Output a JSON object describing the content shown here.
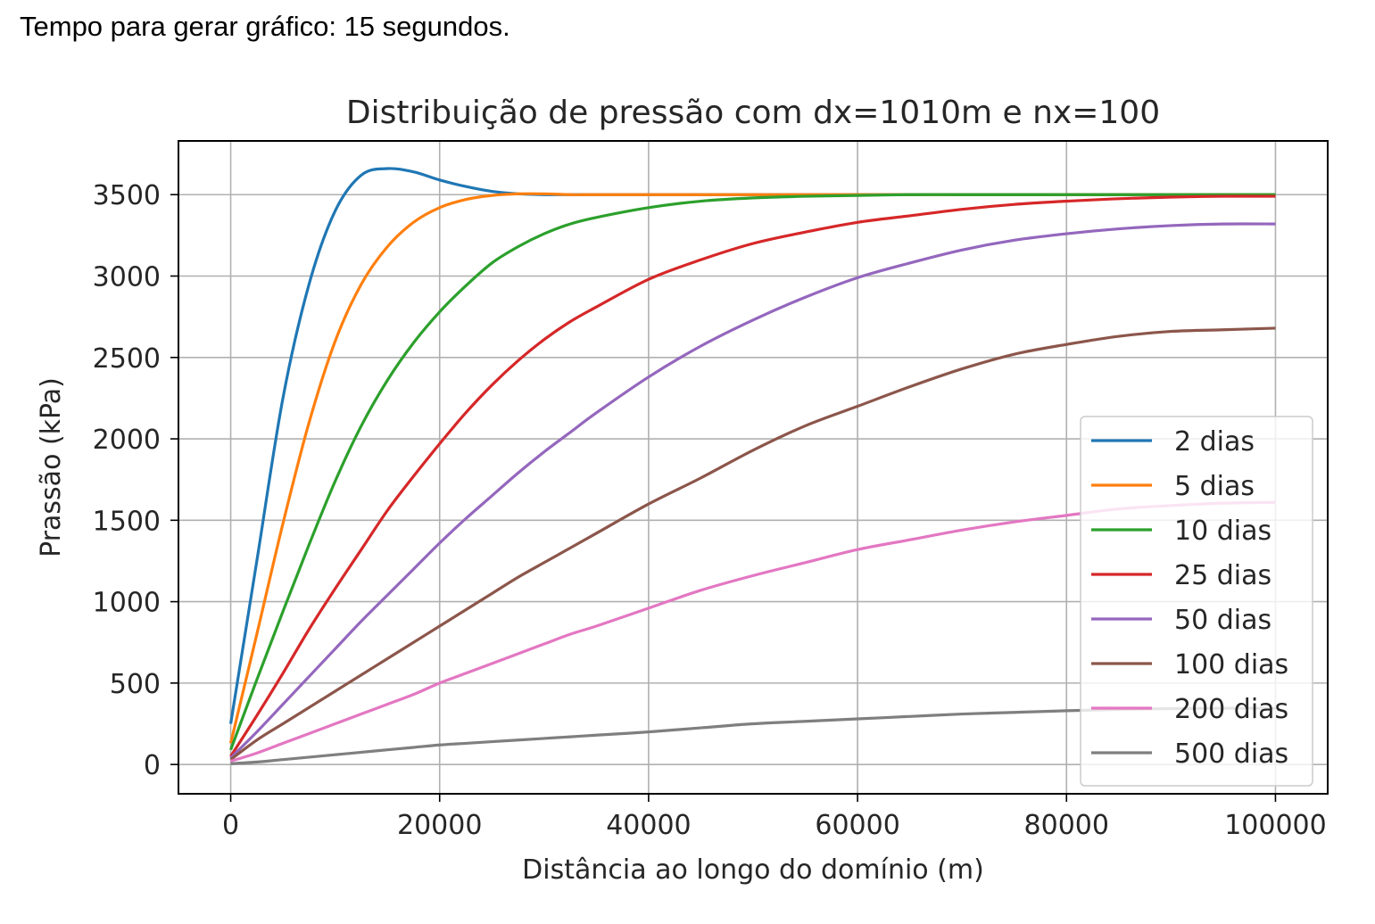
{
  "caption": "Tempo para gerar gráfico: 15 segundos.",
  "chart_data": {
    "type": "line",
    "title": "Distribuição de pressão com dx=1010m e nx=100",
    "xlabel": "Distância ao longo do domínio (m)",
    "ylabel": "Prassão (kPa)",
    "xlim": [
      -5000,
      105000
    ],
    "ylim": [
      -180,
      3830
    ],
    "x_ticks": [
      0,
      20000,
      40000,
      60000,
      80000,
      100000
    ],
    "x_tick_labels": [
      "0",
      "20000",
      "40000",
      "60000",
      "80000",
      "100000"
    ],
    "y_ticks": [
      0,
      500,
      1000,
      1500,
      2000,
      2500,
      3000,
      3500
    ],
    "y_tick_labels": [
      "0",
      "500",
      "1000",
      "1500",
      "2000",
      "2500",
      "3000",
      "3500"
    ],
    "grid": true,
    "legend_position": "lower right",
    "x": [
      0,
      2500,
      5000,
      7500,
      10000,
      12500,
      15000,
      17500,
      20000,
      22500,
      25000,
      27500,
      30000,
      32500,
      35000,
      40000,
      45000,
      50000,
      55000,
      60000,
      65000,
      70000,
      75000,
      80000,
      85000,
      90000,
      95000,
      100000
    ],
    "series": [
      {
        "name": "2 dias",
        "color": "#1f77b4",
        "values": [
          250,
          1250,
          2250,
          2950,
          3400,
          3620,
          3660,
          3640,
          3590,
          3550,
          3520,
          3505,
          3500,
          3500,
          3500,
          3500,
          3500,
          3500,
          3500,
          3500,
          3500,
          3500,
          3500,
          3500,
          3500,
          3500,
          3500,
          3500
        ]
      },
      {
        "name": "5 dias",
        "color": "#ff7f0e",
        "values": [
          130,
          800,
          1480,
          2100,
          2600,
          2950,
          3180,
          3330,
          3420,
          3470,
          3495,
          3505,
          3505,
          3500,
          3500,
          3500,
          3500,
          3500,
          3500,
          3500,
          3500,
          3500,
          3500,
          3500,
          3500,
          3500,
          3500,
          3500
        ]
      },
      {
        "name": "10 dias",
        "color": "#2ca02c",
        "values": [
          90,
          520,
          940,
          1350,
          1740,
          2080,
          2360,
          2590,
          2780,
          2940,
          3080,
          3180,
          3260,
          3320,
          3360,
          3420,
          3460,
          3480,
          3490,
          3495,
          3500,
          3500,
          3500,
          3500,
          3500,
          3500,
          3500,
          3500
        ]
      },
      {
        "name": "25 dias",
        "color": "#d62728",
        "values": [
          50,
          300,
          560,
          830,
          1080,
          1320,
          1560,
          1770,
          1970,
          2160,
          2330,
          2480,
          2610,
          2720,
          2810,
          2980,
          3100,
          3200,
          3270,
          3330,
          3370,
          3410,
          3440,
          3460,
          3475,
          3485,
          3490,
          3490
        ]
      },
      {
        "name": "50 dias",
        "color": "#9467bd",
        "values": [
          40,
          200,
          370,
          540,
          710,
          880,
          1040,
          1200,
          1360,
          1510,
          1650,
          1790,
          1920,
          2040,
          2160,
          2380,
          2570,
          2730,
          2870,
          2990,
          3080,
          3160,
          3220,
          3260,
          3290,
          3310,
          3320,
          3320
        ]
      },
      {
        "name": "100 dias",
        "color": "#8c564b",
        "values": [
          30,
          150,
          250,
          350,
          450,
          550,
          650,
          750,
          850,
          950,
          1050,
          1150,
          1240,
          1330,
          1420,
          1600,
          1760,
          1930,
          2080,
          2200,
          2320,
          2430,
          2520,
          2580,
          2630,
          2660,
          2670,
          2680
        ]
      },
      {
        "name": "200 dias",
        "color": "#e377c2",
        "values": [
          20,
          70,
          130,
          190,
          250,
          310,
          370,
          430,
          500,
          560,
          620,
          680,
          740,
          800,
          850,
          960,
          1070,
          1160,
          1240,
          1320,
          1380,
          1440,
          1490,
          1530,
          1570,
          1590,
          1605,
          1610
        ]
      },
      {
        "name": "500 dias",
        "color": "#7f7f7f",
        "values": [
          5,
          15,
          30,
          45,
          60,
          75,
          90,
          105,
          120,
          130,
          140,
          150,
          160,
          170,
          180,
          200,
          225,
          250,
          265,
          280,
          295,
          310,
          320,
          330,
          338,
          343,
          345,
          345
        ]
      }
    ]
  }
}
